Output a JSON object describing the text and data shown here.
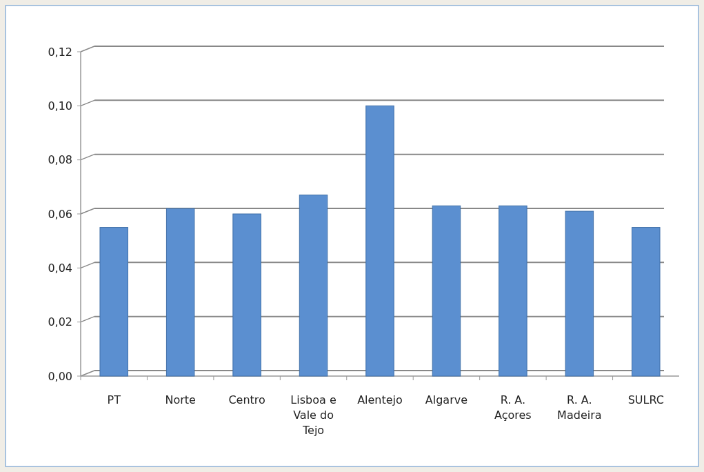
{
  "chart_data": {
    "type": "bar",
    "categories": [
      "PT",
      "Norte",
      "Centro",
      "Lisboa e Vale do Tejo",
      "Alentejo",
      "Algarve",
      "R. A. Açores",
      "R. A. Madeira",
      "SULRC"
    ],
    "values": [
      0.055,
      0.062,
      0.06,
      0.067,
      0.1,
      0.063,
      0.063,
      0.061,
      0.055
    ],
    "color": "#5b8fd0",
    "ylim": [
      0,
      0.12
    ],
    "yticks": [
      {
        "value": 0,
        "label": "0,00"
      },
      {
        "value": 0.02,
        "label": "0,02"
      },
      {
        "value": 0.04,
        "label": "0,04"
      },
      {
        "value": 0.06,
        "label": "0,06"
      },
      {
        "value": 0.08,
        "label": "0,08"
      },
      {
        "value": 0.1,
        "label": "0,10"
      },
      {
        "value": 0.12,
        "label": "0,12"
      }
    ],
    "grid": "y"
  }
}
